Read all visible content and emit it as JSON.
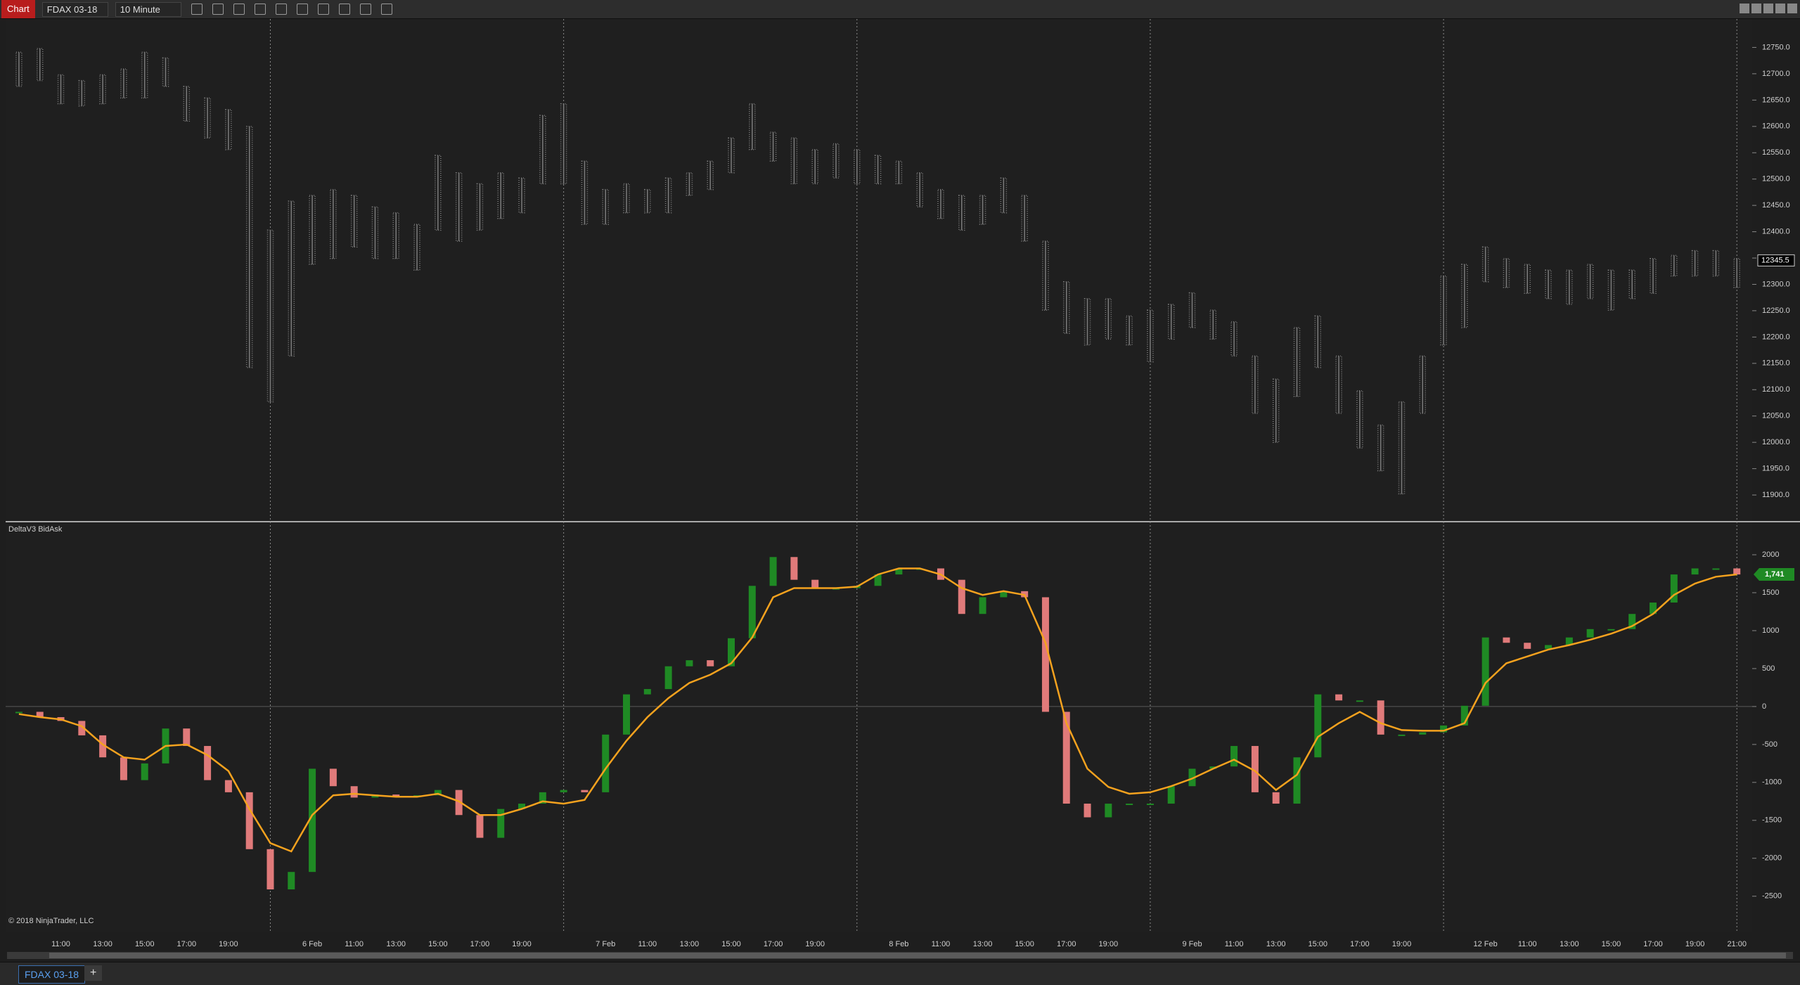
{
  "toolbar": {
    "app": "Chart",
    "instrument": "FDAX 03-18",
    "interval": "10 Minute"
  },
  "tabs": [
    "FDAX 03-18"
  ],
  "tab_add": "+",
  "copyright": "© 2018 NinjaTrader, LLC",
  "chart_data": [
    {
      "type": "ohlc",
      "color": "#7c7c7c",
      "high": [
        12741,
        12748,
        12698,
        12687,
        12698,
        12709,
        12741,
        12730,
        12676,
        12654,
        12632,
        12600,
        12403,
        12458,
        12469,
        12480,
        12469,
        12447,
        12436,
        12414,
        12545,
        12512,
        12491,
        12512,
        12502,
        12621,
        12643,
        12534,
        12480,
        12491,
        12480,
        12502,
        12512,
        12534,
        12578,
        12643,
        12589,
        12578,
        12556,
        12567,
        12556,
        12545,
        12534,
        12512,
        12480,
        12469,
        12469,
        12502,
        12469,
        12382,
        12305,
        12273,
        12273,
        12240,
        12251,
        12262,
        12284,
        12251,
        12229,
        12164,
        12120,
        12218,
        12240,
        12164,
        12098,
        12033,
        12077,
        12164,
        12316,
        12338,
        12371,
        12349,
        12338,
        12327,
        12327,
        12338,
        12327,
        12327,
        12349,
        12355,
        12364,
        12364,
        12349
      ],
      "low": [
        12676,
        12687,
        12643,
        12639,
        12643,
        12654,
        12654,
        12676,
        12610,
        12578,
        12556,
        12142,
        12077,
        12164,
        12338,
        12349,
        12371,
        12349,
        12349,
        12327,
        12403,
        12382,
        12403,
        12425,
        12436,
        12491,
        12491,
        12414,
        12414,
        12436,
        12436,
        12436,
        12469,
        12480,
        12512,
        12556,
        12534,
        12491,
        12491,
        12502,
        12491,
        12491,
        12491,
        12447,
        12425,
        12403,
        12414,
        12436,
        12382,
        12251,
        12207,
        12185,
        12196,
        12185,
        12153,
        12196,
        12218,
        12196,
        12164,
        12055,
        12000,
        12087,
        12142,
        12055,
        11989,
        11946,
        11902,
        12055,
        12185,
        12218,
        12305,
        12294,
        12283,
        12273,
        12262,
        12273,
        12251,
        12273,
        12283,
        12316,
        12316,
        12316,
        12294
      ],
      "ylim": [
        11852,
        12796
      ],
      "yticks": [
        {
          "value": 12750,
          "label": "12750.0"
        },
        {
          "value": 12700,
          "label": "12700.0"
        },
        {
          "value": 12650,
          "label": "12650.0"
        },
        {
          "value": 12600,
          "label": "12600.0"
        },
        {
          "value": 12550,
          "label": "12550.0"
        },
        {
          "value": 12500,
          "label": "12500.0"
        },
        {
          "value": 12450,
          "label": "12450.0"
        },
        {
          "value": 12400,
          "label": "12400.0"
        },
        {
          "value": 12350,
          "label": "12350.0"
        },
        {
          "value": 12300,
          "label": "12300.0"
        },
        {
          "value": 12250,
          "label": "12250.0"
        },
        {
          "value": 12200,
          "label": "12200.0"
        },
        {
          "value": 12150,
          "label": "12150.0"
        },
        {
          "value": 12100,
          "label": "12100.0"
        },
        {
          "value": 12050,
          "label": "12050.0"
        },
        {
          "value": 12000,
          "label": "12000.0"
        },
        {
          "value": 11950,
          "label": "11950.0"
        },
        {
          "value": 11900,
          "label": "11900.0"
        }
      ],
      "last_value": 12345.5
    },
    {
      "type": "candle",
      "title": "DeltaV3 BidAsk",
      "up_color": "#1f8a24",
      "down_color": "#e07a7a",
      "ma_color": "#f5a21e",
      "zero_line": true,
      "categories": [
        null,
        null,
        "11:00",
        null,
        "13:00",
        null,
        "15:00",
        null,
        "17:00",
        null,
        "19:00",
        null,
        null,
        null,
        "6 Feb",
        null,
        "11:00",
        null,
        "13:00",
        null,
        "15:00",
        null,
        "17:00",
        null,
        "19:00",
        null,
        null,
        null,
        "7 Feb",
        null,
        "11:00",
        null,
        "13:00",
        null,
        "15:00",
        null,
        "17:00",
        null,
        "19:00",
        null,
        null,
        null,
        "8 Feb",
        null,
        "11:00",
        null,
        "13:00",
        null,
        "15:00",
        null,
        "17:00",
        null,
        "19:00",
        null,
        null,
        null,
        "9 Feb",
        null,
        "11:00",
        null,
        "13:00",
        null,
        "15:00",
        null,
        "17:00",
        null,
        "19:00",
        null,
        null,
        null,
        "12 Feb",
        null,
        "11:00",
        null,
        "13:00",
        null,
        "15:00",
        null,
        "17:00",
        null,
        "19:00",
        null,
        "21:00"
      ],
      "values": [
        -70,
        -140,
        -190,
        -380,
        -670,
        -970,
        -750,
        -290,
        -520,
        -970,
        -1130,
        -1880,
        -2410,
        -2180,
        -820,
        -1050,
        -1200,
        -1160,
        -1170,
        -1170,
        -1100,
        -1430,
        -1730,
        -1350,
        -1280,
        -1130,
        -1100,
        -1130,
        -370,
        160,
        230,
        530,
        610,
        530,
        900,
        1590,
        1970,
        1670,
        1560,
        1560,
        1590,
        1740,
        1820,
        1820,
        1670,
        1220,
        1440,
        1520,
        1440,
        -70,
        -1280,
        -1460,
        -1280,
        -1280,
        -1280,
        -1050,
        -820,
        -790,
        -520,
        -1130,
        -1280,
        -670,
        160,
        80,
        80,
        -370,
        -370,
        -340,
        -250,
        10,
        910,
        840,
        760,
        810,
        910,
        1020,
        1020,
        1220,
        1370,
        1740,
        1820,
        1820,
        1740
      ],
      "ma_values": [
        -100,
        -140,
        -170,
        -260,
        -500,
        -670,
        -700,
        -520,
        -500,
        -640,
        -850,
        -1350,
        -1800,
        -1910,
        -1430,
        -1170,
        -1150,
        -1170,
        -1190,
        -1190,
        -1150,
        -1250,
        -1430,
        -1430,
        -1350,
        -1250,
        -1280,
        -1230,
        -820,
        -450,
        -140,
        110,
        310,
        420,
        570,
        910,
        1440,
        1560,
        1560,
        1560,
        1580,
        1740,
        1820,
        1820,
        1740,
        1560,
        1470,
        1520,
        1470,
        840,
        -220,
        -820,
        -1060,
        -1150,
        -1130,
        -1050,
        -950,
        -820,
        -700,
        -850,
        -1100,
        -900,
        -400,
        -220,
        -70,
        -220,
        -310,
        -320,
        -320,
        -220,
        310,
        570,
        660,
        750,
        810,
        880,
        960,
        1060,
        1220,
        1470,
        1620,
        1710,
        1741
      ],
      "ylim": [
        -2938,
        2408
      ],
      "yticks": [
        2000,
        1500,
        1000,
        500,
        0,
        -500,
        -1000,
        -1500,
        -2000,
        -2500
      ],
      "last_value": {
        "value": 1741,
        "label": "1,741"
      }
    }
  ]
}
